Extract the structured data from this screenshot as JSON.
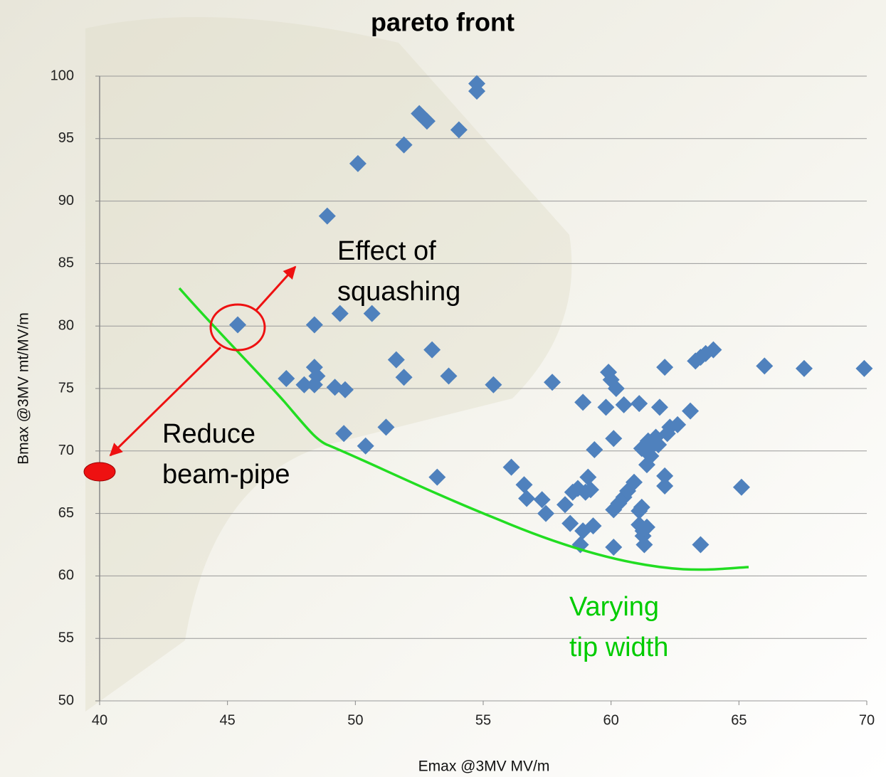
{
  "chart_data": {
    "type": "scatter",
    "title": "pareto front",
    "x_label": "Emax @3MV MV/m",
    "y_label": "Bmax @3MV mt/MV/m",
    "xlim": [
      40,
      70
    ],
    "xticks": [
      40,
      45,
      50,
      55,
      60,
      65,
      70
    ],
    "ylim": [
      50,
      100
    ],
    "yticks": [
      50,
      55,
      60,
      65,
      70,
      75,
      80,
      85,
      90,
      95,
      100
    ],
    "grid": true,
    "color": "#4f81bd",
    "x": [
      54.75,
      54.75,
      52.5,
      52.8,
      54.05,
      51.9,
      50.1,
      48.9,
      45.4,
      48.4,
      49.4,
      50.65,
      47.3,
      48.4,
      48.5,
      48.0,
      48.4,
      49.2,
      49.6,
      49.55,
      50.4,
      51.2,
      51.6,
      51.9,
      53.0,
      53.65,
      53.2,
      55.4,
      56.1,
      56.6,
      56.7,
      57.3,
      57.45,
      57.7,
      58.2,
      58.4,
      58.5,
      58.7,
      58.9,
      58.8,
      58.9,
      59.1,
      59.0,
      59.2,
      59.3,
      59.35,
      59.8,
      59.9,
      60.0,
      60.2,
      60.1,
      60.1,
      60.1,
      60.3,
      60.5,
      60.65,
      60.5,
      60.9,
      61.1,
      61.1,
      61.2,
      61.1,
      61.2,
      61.4,
      61.25,
      61.4,
      61.25,
      61.3,
      61.45,
      61.55,
      61.55,
      61.75,
      61.85,
      61.9,
      62.2,
      62.3,
      62.1,
      62.1,
      62.1,
      62.6,
      63.1,
      63.3,
      63.5,
      63.5,
      63.7,
      64.0,
      65.1,
      66.0,
      67.55,
      69.9
    ],
    "y": [
      99.4,
      98.8,
      97.0,
      96.4,
      95.7,
      94.5,
      93.0,
      88.8,
      80.1,
      80.1,
      81.0,
      81.0,
      75.8,
      76.7,
      76.0,
      75.3,
      75.3,
      75.1,
      74.9,
      71.4,
      70.4,
      71.9,
      77.3,
      75.9,
      78.1,
      76.0,
      67.9,
      75.3,
      68.7,
      67.3,
      66.2,
      66.1,
      65.0,
      75.5,
      65.7,
      64.2,
      66.7,
      67.0,
      73.9,
      62.5,
      63.6,
      67.9,
      66.7,
      66.9,
      64.0,
      70.1,
      73.5,
      76.3,
      75.7,
      75.0,
      62.3,
      71.0,
      65.3,
      65.8,
      66.3,
      66.8,
      73.7,
      67.5,
      73.8,
      65.2,
      65.5,
      64.1,
      70.2,
      68.9,
      63.6,
      63.9,
      63.2,
      62.5,
      70.8,
      70.3,
      69.6,
      71.1,
      70.5,
      73.5,
      71.4,
      71.9,
      68.0,
      67.2,
      76.7,
      72.1,
      73.2,
      77.2,
      77.5,
      62.5,
      77.8,
      78.1,
      67.1,
      76.8,
      76.6,
      76.6
    ],
    "annotations": [
      {
        "lines": [
          "Effect of",
          "squashing"
        ],
        "color": "#000000"
      },
      {
        "lines": [
          "Reduce",
          "beam-pipe"
        ],
        "color": "#000000"
      },
      {
        "lines": [
          "Varying",
          "tip width"
        ],
        "color": "#00cc00"
      }
    ]
  }
}
